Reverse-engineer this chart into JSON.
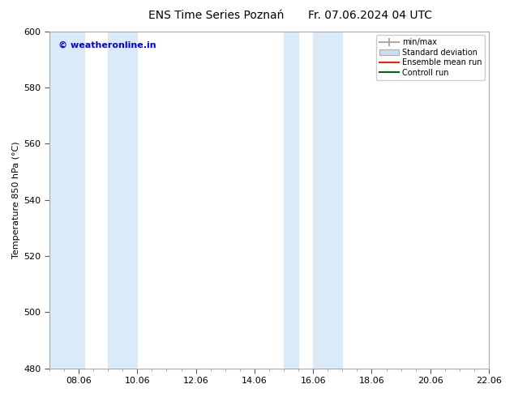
{
  "title": "ENS Time Series Poznań",
  "title2": "Fr. 07.06.2024 04 UTC",
  "ylabel": "Temperature 850 hPa (°C)",
  "ylim": [
    480,
    600
  ],
  "yticks": [
    480,
    500,
    520,
    540,
    560,
    580,
    600
  ],
  "xtick_labels": [
    "08.06",
    "10.06",
    "12.06",
    "14.06",
    "16.06",
    "18.06",
    "20.06",
    "22.06"
  ],
  "band_color": "#daeaf7",
  "watermark": "© weatheronline.in",
  "watermark_color": "#0000ee",
  "background_color": "#ffffff",
  "plot_bg_color": "#ffffff",
  "legend_entries": [
    "min/max",
    "Standard deviation",
    "Ensemble mean run",
    "Controll run"
  ],
  "figsize": [
    6.34,
    4.9
  ],
  "dpi": 100,
  "title_fontsize": 10,
  "axis_fontsize": 8,
  "tick_fontsize": 8
}
